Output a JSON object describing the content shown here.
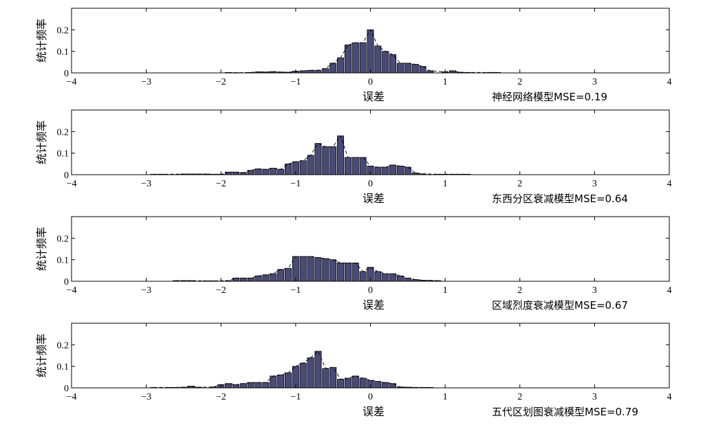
{
  "chart_data": [
    {
      "type": "bar",
      "xlabel": "误差",
      "ylabel": "统计频率",
      "annotation": "神经网络模型MSE=0.19",
      "xlim": [
        -4,
        4
      ],
      "ylim": [
        0,
        0.3
      ],
      "xticks": [
        -4,
        -3,
        -2,
        -1,
        0,
        1,
        2,
        3,
        4
      ],
      "yticks": [
        0,
        0.1,
        0.2
      ],
      "bins": [
        {
          "x": -1.9,
          "y": 0.002
        },
        {
          "x": -1.8,
          "y": 0.001
        },
        {
          "x": -1.6,
          "y": 0.002
        },
        {
          "x": -1.5,
          "y": 0.005
        },
        {
          "x": -1.4,
          "y": 0.004
        },
        {
          "x": -1.3,
          "y": 0.006
        },
        {
          "x": -1.2,
          "y": 0.004
        },
        {
          "x": -1.1,
          "y": 0.003
        },
        {
          "x": -1.0,
          "y": 0.008
        },
        {
          "x": -0.9,
          "y": 0.01
        },
        {
          "x": -0.8,
          "y": 0.012
        },
        {
          "x": -0.7,
          "y": 0.012
        },
        {
          "x": -0.6,
          "y": 0.02
        },
        {
          "x": -0.5,
          "y": 0.045
        },
        {
          "x": -0.4,
          "y": 0.07
        },
        {
          "x": -0.3,
          "y": 0.13
        },
        {
          "x": -0.2,
          "y": 0.14
        },
        {
          "x": -0.1,
          "y": 0.14
        },
        {
          "x": 0.0,
          "y": 0.2
        },
        {
          "x": 0.1,
          "y": 0.125
        },
        {
          "x": 0.2,
          "y": 0.1
        },
        {
          "x": 0.3,
          "y": 0.085
        },
        {
          "x": 0.4,
          "y": 0.045
        },
        {
          "x": 0.5,
          "y": 0.045
        },
        {
          "x": 0.6,
          "y": 0.04
        },
        {
          "x": 0.7,
          "y": 0.03
        },
        {
          "x": 0.8,
          "y": 0.01
        },
        {
          "x": 1.0,
          "y": 0.005
        },
        {
          "x": 1.1,
          "y": 0.01
        },
        {
          "x": 1.2,
          "y": 0.003
        },
        {
          "x": 1.3,
          "y": 0.002
        },
        {
          "x": 1.6,
          "y": 0.002
        },
        {
          "x": 1.7,
          "y": 0.002
        }
      ]
    },
    {
      "type": "bar",
      "xlabel": "误差",
      "ylabel": "统计频率",
      "annotation": "东西分区衰减模型MSE=0.64",
      "xlim": [
        -4,
        4
      ],
      "ylim": [
        0,
        0.3
      ],
      "xticks": [
        -4,
        -3,
        -2,
        -1,
        0,
        1,
        2,
        3,
        4
      ],
      "yticks": [
        0,
        0.1,
        0.2
      ],
      "bins": [
        {
          "x": -2.9,
          "y": 0.002
        },
        {
          "x": -2.8,
          "y": 0.002
        },
        {
          "x": -2.5,
          "y": 0.003
        },
        {
          "x": -2.4,
          "y": 0.003
        },
        {
          "x": -2.3,
          "y": 0.003
        },
        {
          "x": -2.2,
          "y": 0.003
        },
        {
          "x": -2.1,
          "y": 0.002
        },
        {
          "x": -2.0,
          "y": 0.002
        },
        {
          "x": -1.9,
          "y": 0.012
        },
        {
          "x": -1.8,
          "y": 0.012
        },
        {
          "x": -1.7,
          "y": 0.01
        },
        {
          "x": -1.6,
          "y": 0.02
        },
        {
          "x": -1.5,
          "y": 0.027
        },
        {
          "x": -1.4,
          "y": 0.025
        },
        {
          "x": -1.3,
          "y": 0.03
        },
        {
          "x": -1.2,
          "y": 0.025
        },
        {
          "x": -1.1,
          "y": 0.05
        },
        {
          "x": -1.0,
          "y": 0.06
        },
        {
          "x": -0.9,
          "y": 0.065
        },
        {
          "x": -0.8,
          "y": 0.09
        },
        {
          "x": -0.7,
          "y": 0.145
        },
        {
          "x": -0.6,
          "y": 0.13
        },
        {
          "x": -0.5,
          "y": 0.13
        },
        {
          "x": -0.4,
          "y": 0.18
        },
        {
          "x": -0.3,
          "y": 0.08
        },
        {
          "x": -0.2,
          "y": 0.08
        },
        {
          "x": -0.1,
          "y": 0.08
        },
        {
          "x": 0.0,
          "y": 0.04
        },
        {
          "x": 0.1,
          "y": 0.035
        },
        {
          "x": 0.2,
          "y": 0.035
        },
        {
          "x": 0.3,
          "y": 0.045
        },
        {
          "x": 0.4,
          "y": 0.04
        },
        {
          "x": 0.5,
          "y": 0.035
        },
        {
          "x": 0.6,
          "y": 0.008
        },
        {
          "x": 0.7,
          "y": 0.004
        },
        {
          "x": 0.9,
          "y": 0.002
        },
        {
          "x": 1.0,
          "y": 0.002
        },
        {
          "x": 1.1,
          "y": 0.002
        },
        {
          "x": 1.2,
          "y": 0.002
        },
        {
          "x": 1.3,
          "y": 0.002
        }
      ]
    },
    {
      "type": "bar",
      "xlabel": "误差",
      "ylabel": "统计频率",
      "annotation": "区域烈度衰减模型MSE=0.67",
      "xlim": [
        -4,
        4
      ],
      "ylim": [
        0,
        0.3
      ],
      "xticks": [
        -4,
        -3,
        -2,
        -1,
        0,
        1,
        2,
        3,
        4
      ],
      "yticks": [
        0,
        0.1,
        0.2
      ],
      "bins": [
        {
          "x": -2.6,
          "y": 0.003
        },
        {
          "x": -2.5,
          "y": 0.003
        },
        {
          "x": -2.4,
          "y": 0.003
        },
        {
          "x": -2.2,
          "y": 0.002
        },
        {
          "x": -2.1,
          "y": 0.002
        },
        {
          "x": -1.9,
          "y": 0.003
        },
        {
          "x": -1.8,
          "y": 0.015
        },
        {
          "x": -1.7,
          "y": 0.015
        },
        {
          "x": -1.6,
          "y": 0.015
        },
        {
          "x": -1.5,
          "y": 0.025
        },
        {
          "x": -1.4,
          "y": 0.03
        },
        {
          "x": -1.3,
          "y": 0.035
        },
        {
          "x": -1.2,
          "y": 0.055
        },
        {
          "x": -1.1,
          "y": 0.06
        },
        {
          "x": -1.0,
          "y": 0.115
        },
        {
          "x": -0.9,
          "y": 0.115
        },
        {
          "x": -0.8,
          "y": 0.115
        },
        {
          "x": -0.7,
          "y": 0.11
        },
        {
          "x": -0.6,
          "y": 0.105
        },
        {
          "x": -0.5,
          "y": 0.1
        },
        {
          "x": -0.4,
          "y": 0.085
        },
        {
          "x": -0.3,
          "y": 0.085
        },
        {
          "x": -0.2,
          "y": 0.085
        },
        {
          "x": -0.1,
          "y": 0.045
        },
        {
          "x": 0.0,
          "y": 0.065
        },
        {
          "x": 0.1,
          "y": 0.045
        },
        {
          "x": 0.2,
          "y": 0.035
        },
        {
          "x": 0.3,
          "y": 0.035
        },
        {
          "x": 0.4,
          "y": 0.025
        },
        {
          "x": 0.5,
          "y": 0.015
        },
        {
          "x": 0.6,
          "y": 0.008
        },
        {
          "x": 0.7,
          "y": 0.005
        },
        {
          "x": 0.8,
          "y": 0.004
        },
        {
          "x": 0.9,
          "y": 0.003
        }
      ]
    },
    {
      "type": "bar",
      "xlabel": "误差",
      "ylabel": "统计频率",
      "annotation": "五代区划图衰减模型MSE=0.79",
      "xlim": [
        -4,
        4
      ],
      "ylim": [
        0,
        0.3
      ],
      "xticks": [
        -4,
        -3,
        -2,
        -1,
        0,
        1,
        2,
        3,
        4
      ],
      "yticks": [
        0,
        0.1,
        0.2
      ],
      "bins": [
        {
          "x": -2.9,
          "y": 0.002
        },
        {
          "x": -2.7,
          "y": 0.002
        },
        {
          "x": -2.6,
          "y": 0.002
        },
        {
          "x": -2.5,
          "y": 0.003
        },
        {
          "x": -2.4,
          "y": 0.008
        },
        {
          "x": -2.3,
          "y": 0.003
        },
        {
          "x": -2.1,
          "y": 0.004
        },
        {
          "x": -2.0,
          "y": 0.015
        },
        {
          "x": -1.9,
          "y": 0.02
        },
        {
          "x": -1.8,
          "y": 0.015
        },
        {
          "x": -1.7,
          "y": 0.02
        },
        {
          "x": -1.6,
          "y": 0.025
        },
        {
          "x": -1.5,
          "y": 0.025
        },
        {
          "x": -1.4,
          "y": 0.025
        },
        {
          "x": -1.3,
          "y": 0.055
        },
        {
          "x": -1.2,
          "y": 0.06
        },
        {
          "x": -1.1,
          "y": 0.07
        },
        {
          "x": -1.0,
          "y": 0.1
        },
        {
          "x": -0.9,
          "y": 0.115
        },
        {
          "x": -0.8,
          "y": 0.14
        },
        {
          "x": -0.7,
          "y": 0.17
        },
        {
          "x": -0.6,
          "y": 0.09
        },
        {
          "x": -0.5,
          "y": 0.095
        },
        {
          "x": -0.4,
          "y": 0.04
        },
        {
          "x": -0.3,
          "y": 0.045
        },
        {
          "x": -0.2,
          "y": 0.055
        },
        {
          "x": -0.1,
          "y": 0.045
        },
        {
          "x": 0.0,
          "y": 0.035
        },
        {
          "x": 0.1,
          "y": 0.03
        },
        {
          "x": 0.2,
          "y": 0.025
        },
        {
          "x": 0.3,
          "y": 0.02
        },
        {
          "x": 0.4,
          "y": 0.004
        },
        {
          "x": 0.5,
          "y": 0.003
        },
        {
          "x": 0.6,
          "y": 0.002
        },
        {
          "x": 0.7,
          "y": 0.002
        },
        {
          "x": 0.8,
          "y": 0.002
        }
      ]
    }
  ]
}
